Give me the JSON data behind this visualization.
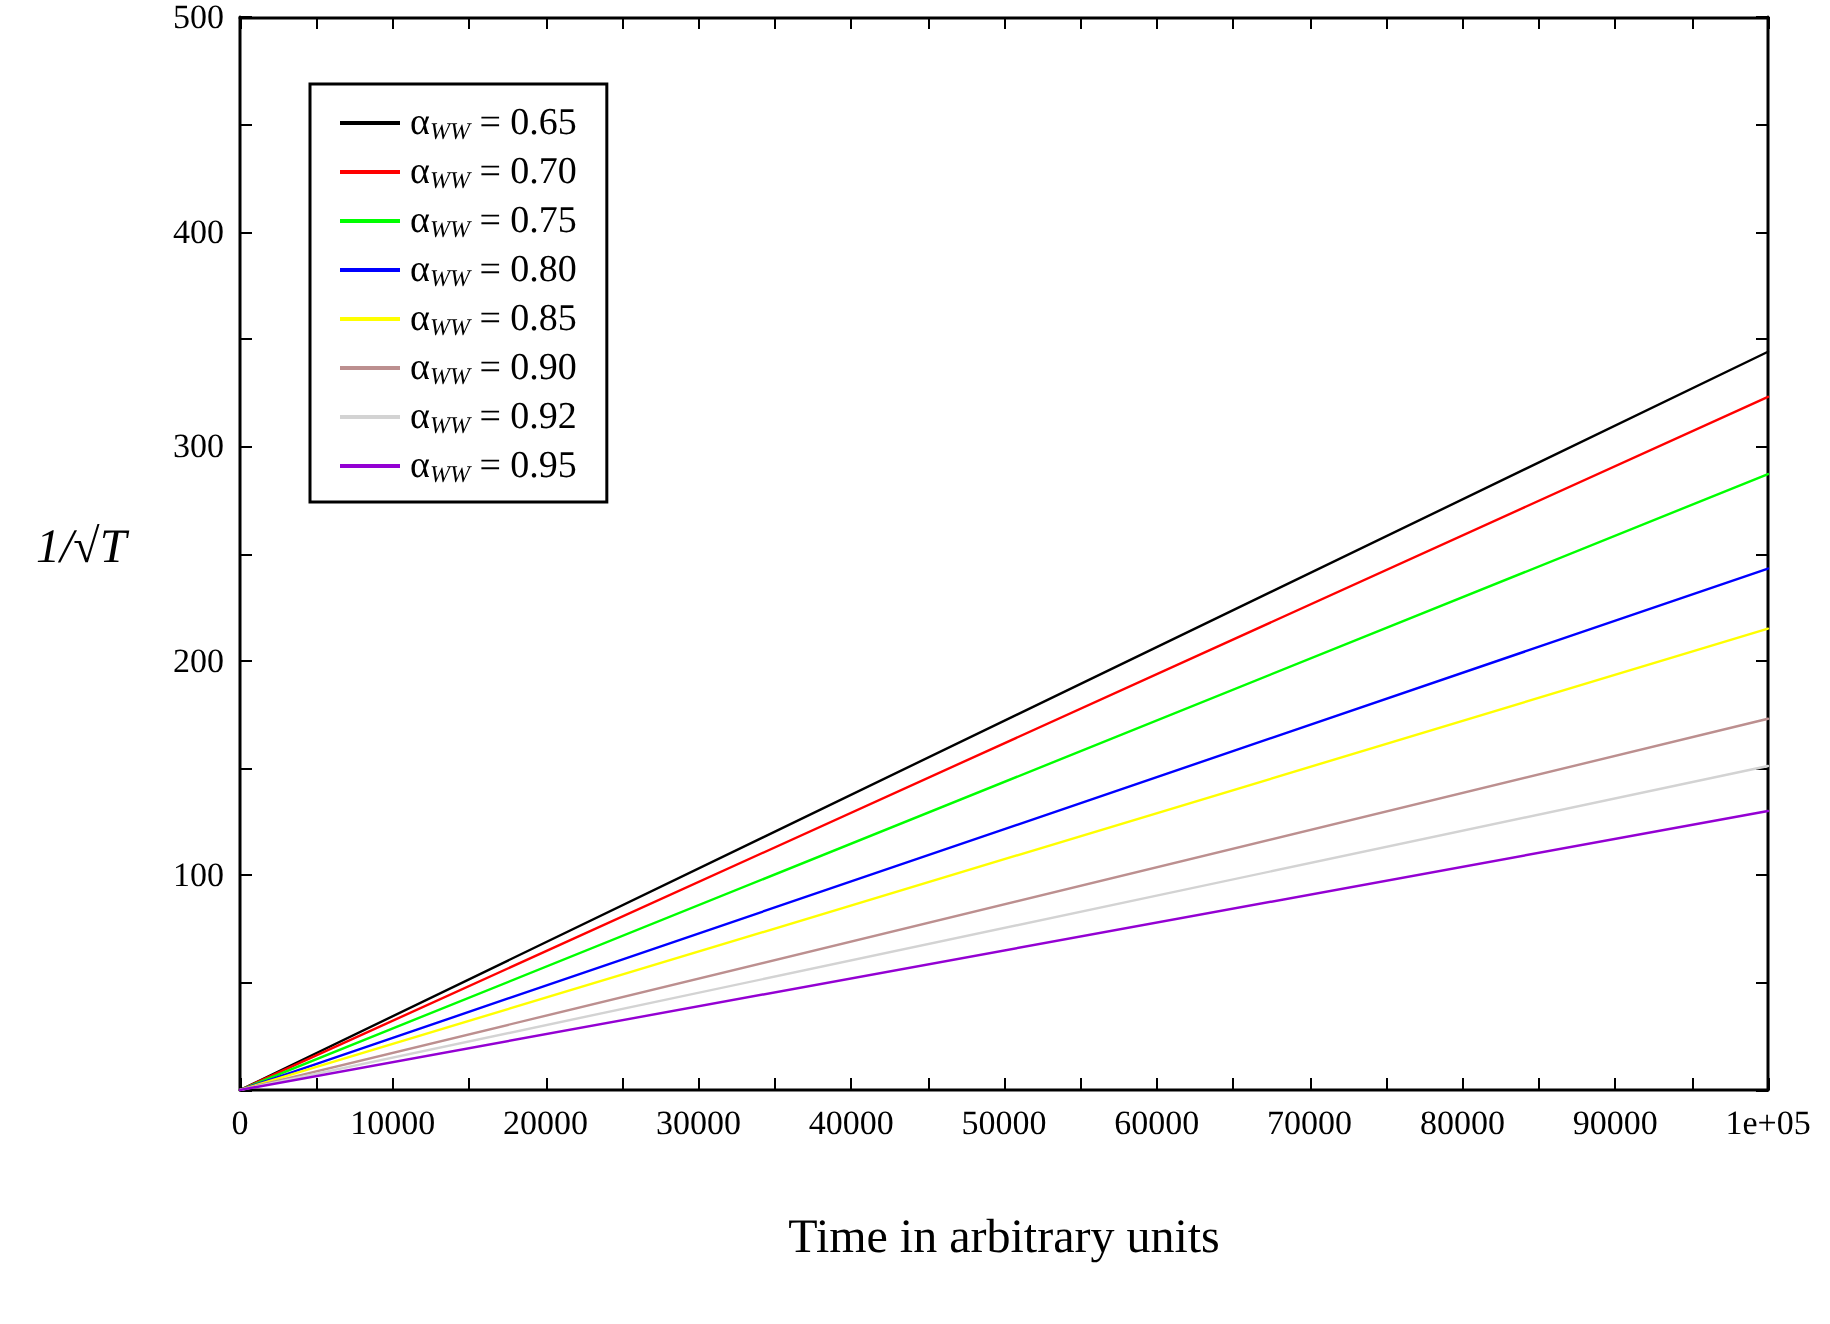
{
  "chart_data": {
    "type": "line",
    "xlabel": "Time in arbitrary units",
    "ylabel": "1/√T",
    "x": [
      0,
      100000
    ],
    "series": [
      {
        "name": "α$_{WW}$ = 0.65",
        "color": "#000000",
        "values": [
          0,
          344
        ]
      },
      {
        "name": "α$_{WW}$ = 0.70",
        "color": "#ff0000",
        "values": [
          0,
          323
        ]
      },
      {
        "name": "α$_{WW}$ = 0.75",
        "color": "#00ff00",
        "values": [
          0,
          287
        ]
      },
      {
        "name": "α$_{WW}$ = 0.80",
        "color": "#0000ff",
        "values": [
          0,
          243
        ]
      },
      {
        "name": "α$_{WW}$ = 0.85",
        "color": "#ffff00",
        "values": [
          0,
          215
        ]
      },
      {
        "name": "α$_{WW}$ = 0.90",
        "color": "#bc8f8f",
        "values": [
          0,
          173
        ]
      },
      {
        "name": "α$_{WW}$ = 0.92",
        "color": "#d3d3d3",
        "values": [
          0,
          151
        ]
      },
      {
        "name": "α$_{WW}$ = 0.95",
        "color": "#9400d3",
        "values": [
          0,
          130
        ]
      }
    ],
    "xlim": [
      0,
      100000
    ],
    "xticks": [
      0,
      {
        "value": 5000,
        "label": null
      },
      10000,
      {
        "value": 15000,
        "label": null
      },
      20000,
      {
        "value": 25000,
        "label": null
      },
      30000,
      {
        "value": 35000,
        "label": null
      },
      40000,
      {
        "value": 45000,
        "label": null
      },
      50000,
      {
        "value": 55000,
        "label": null
      },
      60000,
      {
        "value": 65000,
        "label": null
      },
      70000,
      {
        "value": 75000,
        "label": null
      },
      80000,
      {
        "value": 85000,
        "label": null
      },
      90000,
      {
        "value": 95000,
        "label": null
      },
      {
        "value": 100000,
        "label": "1e+05"
      }
    ],
    "ylim": [
      0,
      500
    ],
    "yticks": [
      {
        "value": 0,
        "label": null
      },
      {
        "value": 50,
        "label": null
      },
      100,
      {
        "value": 150,
        "label": null
      },
      200,
      {
        "value": 250,
        "label": null
      },
      300,
      {
        "value": 350,
        "label": null
      },
      400,
      {
        "value": 450,
        "label": null
      },
      500
    ],
    "grid": false,
    "legend": "top left",
    "marker": "none",
    "line_style": "solid"
  }
}
